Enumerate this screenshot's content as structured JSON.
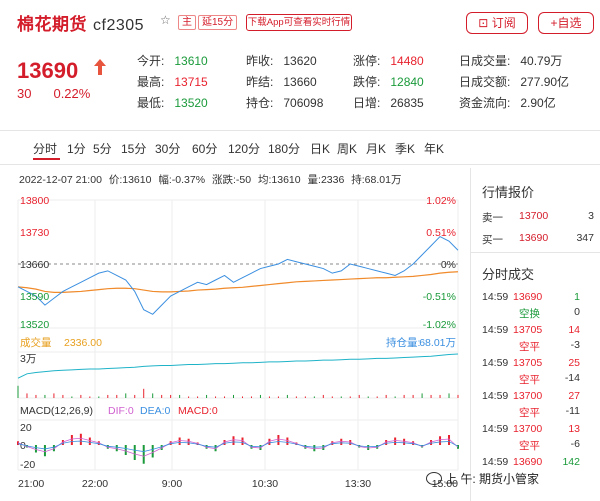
{
  "header": {
    "name": "棉花期货",
    "code": "cf2305",
    "star": "☆",
    "badge_main": "主",
    "badge_delay": "延15分",
    "app_button": "下载App可查看实时行情",
    "subscribe": "订阅",
    "favorite": "+自选"
  },
  "quote": {
    "price": "13690",
    "change": "30",
    "change_pct": "0.22%",
    "fields": [
      {
        "k": "今开:",
        "v": "13610",
        "c": "green"
      },
      {
        "k": "昨收:",
        "v": "13620",
        "c": "dark"
      },
      {
        "k": "涨停:",
        "v": "14480",
        "c": "red"
      },
      {
        "k": "日成交量:",
        "v": "40.79万",
        "c": "dark"
      },
      {
        "k": "最高:",
        "v": "13715",
        "c": "red"
      },
      {
        "k": "昨结:",
        "v": "13660",
        "c": "dark"
      },
      {
        "k": "跌停:",
        "v": "12840",
        "c": "green"
      },
      {
        "k": "日成交额:",
        "v": "277.90亿",
        "c": "dark"
      },
      {
        "k": "最低:",
        "v": "13520",
        "c": "green"
      },
      {
        "k": "持仓:",
        "v": "706098",
        "c": "dark"
      },
      {
        "k": "日增:",
        "v": "26835",
        "c": "dark"
      },
      {
        "k": "资金流向:",
        "v": "2.90亿",
        "c": "dark"
      }
    ]
  },
  "tabs": [
    "分时",
    "1分",
    "5分",
    "15分",
    "30分",
    "60分",
    "120分",
    "180分",
    "日K",
    "周K",
    "月K",
    "季K",
    "年K"
  ],
  "info": {
    "time": "2022-12-07 21:00",
    "price": "价:13610",
    "amp": "幅:-0.37%",
    "rise": "涨跌:-50",
    "avg": "均:13610",
    "vol": "量:2336",
    "oi": "持:68.01万"
  },
  "chart_data": {
    "type": "line",
    "price_ticks": [
      "13800",
      "13730",
      "13660",
      "13590",
      "13520"
    ],
    "pct_ticks": [
      "1.02%",
      "0.51%",
      "0%",
      "-0.51%",
      "-1.02%"
    ],
    "ylim": [
      13520,
      13800
    ],
    "baseline": 13660,
    "price": [
      13610,
      13600,
      13590,
      13570,
      13585,
      13600,
      13610,
      13620,
      13630,
      13640,
      13645,
      13635,
      13625,
      13600,
      13560,
      13550,
      13570,
      13590,
      13600,
      13610,
      13620,
      13615,
      13625,
      13635,
      13620,
      13630,
      13640,
      13650,
      13655,
      13660,
      13670,
      13665,
      13660,
      13655,
      13650,
      13640,
      13645,
      13660,
      13655,
      13650,
      13645,
      13640,
      13635,
      13645,
      13660,
      13680,
      13700,
      13720,
      13710,
      13690
    ],
    "avg": [
      13610,
      13608,
      13605,
      13600,
      13598,
      13598,
      13599,
      13600,
      13602,
      13604,
      13606,
      13607,
      13607,
      13606,
      13603,
      13600,
      13599,
      13599,
      13600,
      13601,
      13603,
      13604,
      13605,
      13607,
      13608,
      13609,
      13611,
      13613,
      13615,
      13617,
      13619,
      13621,
      13622,
      13623,
      13624,
      13625,
      13626,
      13627,
      13628,
      13629,
      13630,
      13630,
      13631,
      13632,
      13633,
      13635,
      13637,
      13640,
      13642,
      13643
    ],
    "volume_label": "成交量",
    "volume_value": "2336.00",
    "oi_label": "持仓量:",
    "oi_value": "68.01万",
    "volume_axis": "3万",
    "volume": [
      8,
      3,
      2,
      2,
      3,
      2,
      1,
      2,
      1,
      1,
      2,
      2,
      3,
      2,
      6,
      3,
      2,
      2,
      2,
      1,
      1,
      2,
      1,
      1,
      2,
      1,
      1,
      2,
      1,
      1,
      2,
      1,
      1,
      1,
      2,
      1,
      1,
      1,
      2,
      1,
      1,
      2,
      1,
      2,
      2,
      3,
      2,
      2,
      3,
      2
    ],
    "oi": [
      0.45,
      0.55,
      0.58,
      0.6,
      0.62,
      0.63,
      0.64,
      0.65,
      0.66,
      0.66,
      0.67,
      0.68,
      0.69,
      0.7,
      0.72,
      0.73,
      0.74,
      0.74,
      0.75,
      0.76,
      0.76,
      0.77,
      0.78,
      0.78,
      0.79,
      0.8,
      0.8,
      0.81,
      0.82,
      0.82,
      0.83,
      0.84,
      0.84,
      0.85,
      0.86,
      0.86,
      0.87,
      0.88,
      0.88,
      0.89,
      0.9,
      0.9,
      0.91,
      0.92,
      0.93,
      0.94,
      0.95,
      0.97,
      0.99,
      1.0
    ],
    "macd_label": "MACD(12,26,9)",
    "dif_label": "DIF:0",
    "dea_label": "DEA:0",
    "macd_value": "MACD:0",
    "macd_ticks": [
      "20",
      "0",
      "-20"
    ],
    "macd": [
      3,
      -2,
      -6,
      -9,
      -5,
      4,
      8,
      9,
      6,
      3,
      -3,
      -5,
      -8,
      -12,
      -15,
      -10,
      -4,
      3,
      6,
      5,
      2,
      -3,
      -5,
      4,
      7,
      6,
      -3,
      -4,
      5,
      8,
      6,
      2,
      -3,
      -5,
      -4,
      3,
      5,
      4,
      -2,
      -4,
      -3,
      4,
      6,
      5,
      3,
      -2,
      4,
      7,
      8,
      -3
    ],
    "x_ticks": [
      "21:00",
      "22:00",
      "9:00",
      "10:30",
      "13:30",
      "15:00"
    ]
  },
  "book": {
    "title": "行情报价",
    "rows": [
      {
        "l": "卖一",
        "p": "13700",
        "v": "3"
      },
      {
        "l": "买一",
        "p": "13690",
        "v": "347"
      }
    ]
  },
  "trades": {
    "title": "分时成交",
    "rows": [
      {
        "t": "14:59",
        "p": "13690",
        "v": "1",
        "ty": "空换",
        "d": "0",
        "pc": "red",
        "vc": "green",
        "tc": "green",
        "dc": "dark"
      },
      {
        "t": "14:59",
        "p": "13705",
        "v": "14",
        "ty": "空平",
        "d": "-3",
        "pc": "red",
        "vc": "red",
        "tc": "red",
        "dc": "dark"
      },
      {
        "t": "14:59",
        "p": "13705",
        "v": "25",
        "ty": "空平",
        "d": "-14",
        "pc": "red",
        "vc": "red",
        "tc": "red",
        "dc": "dark"
      },
      {
        "t": "14:59",
        "p": "13700",
        "v": "27",
        "ty": "空平",
        "d": "-11",
        "pc": "red",
        "vc": "red",
        "tc": "red",
        "dc": "dark"
      },
      {
        "t": "14:59",
        "p": "13700",
        "v": "13",
        "ty": "空平",
        "d": "-6",
        "pc": "red",
        "vc": "red",
        "tc": "red",
        "dc": "dark"
      },
      {
        "t": "14:59",
        "p": "13690",
        "v": "142",
        "ty": "",
        "d": "",
        "pc": "red",
        "vc": "green",
        "tc": "dark",
        "dc": "dark"
      }
    ]
  },
  "watermark": "上 午: 期货小管家"
}
